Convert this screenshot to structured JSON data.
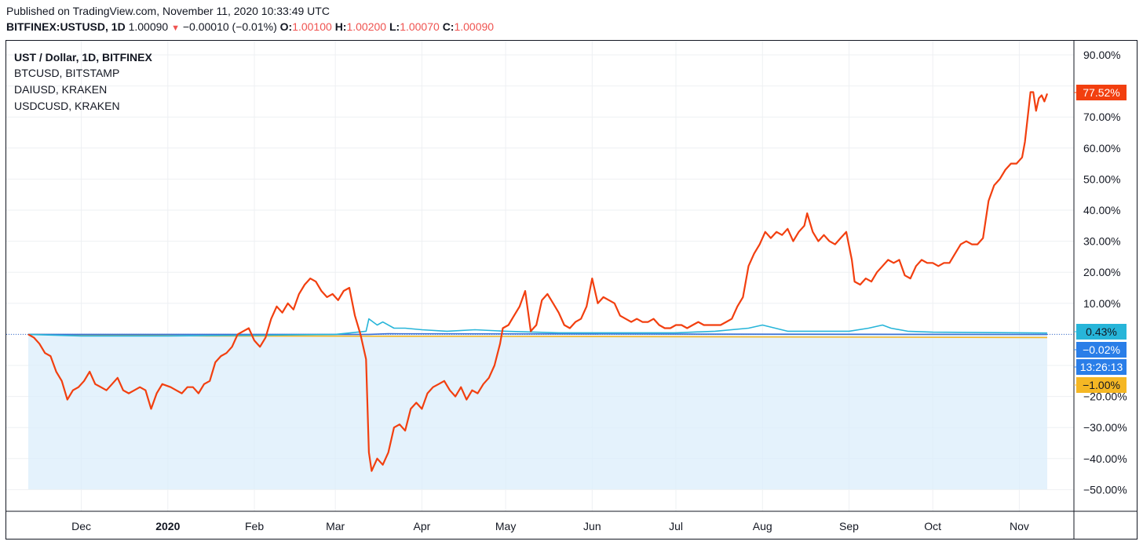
{
  "header": {
    "published": "Published on TradingView.com, November 11, 2020 10:33:49 UTC",
    "symbol": "BITFINEX:USTUSD, 1D",
    "last": "1.00090",
    "change": "−0.00010 (−0.01%)",
    "o_label": "O:",
    "o_value": "1.00100",
    "h_label": "H:",
    "h_value": "1.00200",
    "l_label": "L:",
    "l_value": "1.00070",
    "c_label": "C:",
    "c_value": "1.00090"
  },
  "legend": [
    "UST / Dollar, 1D, BITFINEX",
    "BTCUSD, BITSTAMP",
    "DAIUSD, KRAKEN",
    "USDCUSD, KRAKEN"
  ],
  "colors": {
    "btc": "#f23f0f",
    "dai": "#27b5d9",
    "usdc": "#f5b724",
    "ust": "#3b6fd4",
    "fill": "#dbeefb",
    "grid": "#eef0f3"
  },
  "chart_data": {
    "type": "line",
    "y_scale": "percent",
    "ylim": [
      -57,
      93
    ],
    "yticks": [
      -50,
      -40,
      -30,
      -20,
      -10,
      0,
      10,
      20,
      30,
      40,
      50,
      60,
      70,
      80,
      90
    ],
    "ytick_labels": [
      "−50.00%",
      "−40.00%",
      "−30.00%",
      "−20.00%",
      "",
      "",
      "10.00%",
      "20.00%",
      "30.00%",
      "40.00%",
      "50.00%",
      "60.00%",
      "70.00%",
      "",
      "90.00%"
    ],
    "x_domain": [
      "2019-11-12",
      "2020-11-11"
    ],
    "x_ticks": [
      {
        "date": "2019-12-01",
        "label": "Dec"
      },
      {
        "date": "2020-01-01",
        "label": "2020"
      },
      {
        "date": "2020-02-01",
        "label": "Feb"
      },
      {
        "date": "2020-03-01",
        "label": "Mar"
      },
      {
        "date": "2020-04-01",
        "label": "Apr"
      },
      {
        "date": "2020-05-01",
        "label": "May"
      },
      {
        "date": "2020-06-01",
        "label": "Jun"
      },
      {
        "date": "2020-07-01",
        "label": "Jul"
      },
      {
        "date": "2020-08-01",
        "label": "Aug"
      },
      {
        "date": "2020-09-01",
        "label": "Sep"
      },
      {
        "date": "2020-10-01",
        "label": "Oct"
      },
      {
        "date": "2020-11-01",
        "label": "Nov"
      }
    ],
    "series": [
      {
        "name": "BTCUSD, BITSTAMP",
        "color": "#f23f0f",
        "last_label": "77.52%",
        "points": [
          [
            "2019-11-12",
            0
          ],
          [
            "2019-11-14",
            -1
          ],
          [
            "2019-11-16",
            -3
          ],
          [
            "2019-11-18",
            -6
          ],
          [
            "2019-11-20",
            -7
          ],
          [
            "2019-11-22",
            -12
          ],
          [
            "2019-11-24",
            -15
          ],
          [
            "2019-11-26",
            -21
          ],
          [
            "2019-11-28",
            -18
          ],
          [
            "2019-11-30",
            -17
          ],
          [
            "2019-12-02",
            -15
          ],
          [
            "2019-12-04",
            -12
          ],
          [
            "2019-12-06",
            -16
          ],
          [
            "2019-12-08",
            -17
          ],
          [
            "2019-12-10",
            -18
          ],
          [
            "2019-12-12",
            -16
          ],
          [
            "2019-12-14",
            -14
          ],
          [
            "2019-12-16",
            -18
          ],
          [
            "2019-12-18",
            -19
          ],
          [
            "2019-12-20",
            -18
          ],
          [
            "2019-12-22",
            -17
          ],
          [
            "2019-12-24",
            -18
          ],
          [
            "2019-12-26",
            -24
          ],
          [
            "2019-12-28",
            -19
          ],
          [
            "2019-12-30",
            -16
          ],
          [
            "2020-01-02",
            -17
          ],
          [
            "2020-01-04",
            -18
          ],
          [
            "2020-01-06",
            -19
          ],
          [
            "2020-01-08",
            -17
          ],
          [
            "2020-01-10",
            -17
          ],
          [
            "2020-01-12",
            -19
          ],
          [
            "2020-01-14",
            -16
          ],
          [
            "2020-01-16",
            -15
          ],
          [
            "2020-01-18",
            -9
          ],
          [
            "2020-01-20",
            -7
          ],
          [
            "2020-01-22",
            -6
          ],
          [
            "2020-01-24",
            -4
          ],
          [
            "2020-01-26",
            0
          ],
          [
            "2020-01-28",
            1
          ],
          [
            "2020-01-30",
            2
          ],
          [
            "2020-02-01",
            -2
          ],
          [
            "2020-02-03",
            -4
          ],
          [
            "2020-02-05",
            -1
          ],
          [
            "2020-02-07",
            5
          ],
          [
            "2020-02-09",
            9
          ],
          [
            "2020-02-11",
            7
          ],
          [
            "2020-02-13",
            10
          ],
          [
            "2020-02-15",
            8
          ],
          [
            "2020-02-17",
            13
          ],
          [
            "2020-02-19",
            16
          ],
          [
            "2020-02-21",
            18
          ],
          [
            "2020-02-23",
            17
          ],
          [
            "2020-02-25",
            14
          ],
          [
            "2020-02-27",
            12
          ],
          [
            "2020-02-29",
            13
          ],
          [
            "2020-03-02",
            11
          ],
          [
            "2020-03-04",
            14
          ],
          [
            "2020-03-06",
            15
          ],
          [
            "2020-03-08",
            6
          ],
          [
            "2020-03-10",
            0
          ],
          [
            "2020-03-12",
            -8
          ],
          [
            "2020-03-13",
            -38
          ],
          [
            "2020-03-14",
            -44
          ],
          [
            "2020-03-16",
            -40
          ],
          [
            "2020-03-18",
            -42
          ],
          [
            "2020-03-20",
            -38
          ],
          [
            "2020-03-22",
            -30
          ],
          [
            "2020-03-24",
            -29
          ],
          [
            "2020-03-26",
            -31
          ],
          [
            "2020-03-28",
            -24
          ],
          [
            "2020-03-30",
            -22
          ],
          [
            "2020-04-01",
            -24
          ],
          [
            "2020-04-03",
            -19
          ],
          [
            "2020-04-05",
            -17
          ],
          [
            "2020-04-07",
            -16
          ],
          [
            "2020-04-09",
            -15
          ],
          [
            "2020-04-11",
            -18
          ],
          [
            "2020-04-13",
            -20
          ],
          [
            "2020-04-15",
            -17
          ],
          [
            "2020-04-17",
            -21
          ],
          [
            "2020-04-19",
            -18
          ],
          [
            "2020-04-21",
            -19
          ],
          [
            "2020-04-23",
            -16
          ],
          [
            "2020-04-25",
            -14
          ],
          [
            "2020-04-27",
            -10
          ],
          [
            "2020-04-29",
            -3
          ],
          [
            "2020-04-30",
            2
          ],
          [
            "2020-05-02",
            3
          ],
          [
            "2020-05-04",
            6
          ],
          [
            "2020-05-06",
            9
          ],
          [
            "2020-05-08",
            14
          ],
          [
            "2020-05-10",
            1
          ],
          [
            "2020-05-12",
            3
          ],
          [
            "2020-05-14",
            11
          ],
          [
            "2020-05-16",
            13
          ],
          [
            "2020-05-18",
            10
          ],
          [
            "2020-05-20",
            7
          ],
          [
            "2020-05-22",
            3
          ],
          [
            "2020-05-24",
            2
          ],
          [
            "2020-05-26",
            4
          ],
          [
            "2020-05-28",
            5
          ],
          [
            "2020-05-30",
            9
          ],
          [
            "2020-06-01",
            18
          ],
          [
            "2020-06-03",
            10
          ],
          [
            "2020-06-05",
            12
          ],
          [
            "2020-06-07",
            11
          ],
          [
            "2020-06-09",
            10
          ],
          [
            "2020-06-11",
            6
          ],
          [
            "2020-06-13",
            5
          ],
          [
            "2020-06-15",
            4
          ],
          [
            "2020-06-17",
            5
          ],
          [
            "2020-06-19",
            4
          ],
          [
            "2020-06-21",
            4
          ],
          [
            "2020-06-23",
            5
          ],
          [
            "2020-06-25",
            3
          ],
          [
            "2020-06-27",
            2
          ],
          [
            "2020-06-29",
            2
          ],
          [
            "2020-07-01",
            3
          ],
          [
            "2020-07-03",
            3
          ],
          [
            "2020-07-05",
            2
          ],
          [
            "2020-07-07",
            3
          ],
          [
            "2020-07-09",
            4
          ],
          [
            "2020-07-11",
            3
          ],
          [
            "2020-07-13",
            3
          ],
          [
            "2020-07-15",
            3
          ],
          [
            "2020-07-17",
            3
          ],
          [
            "2020-07-19",
            4
          ],
          [
            "2020-07-21",
            5
          ],
          [
            "2020-07-23",
            9
          ],
          [
            "2020-07-25",
            12
          ],
          [
            "2020-07-27",
            22
          ],
          [
            "2020-07-29",
            26
          ],
          [
            "2020-07-31",
            29
          ],
          [
            "2020-08-02",
            33
          ],
          [
            "2020-08-04",
            31
          ],
          [
            "2020-08-06",
            33
          ],
          [
            "2020-08-08",
            32
          ],
          [
            "2020-08-10",
            34
          ],
          [
            "2020-08-12",
            30
          ],
          [
            "2020-08-14",
            33
          ],
          [
            "2020-08-16",
            35
          ],
          [
            "2020-08-17",
            39
          ],
          [
            "2020-08-19",
            33
          ],
          [
            "2020-08-21",
            30
          ],
          [
            "2020-08-23",
            32
          ],
          [
            "2020-08-25",
            30
          ],
          [
            "2020-08-27",
            29
          ],
          [
            "2020-08-29",
            31
          ],
          [
            "2020-08-31",
            33
          ],
          [
            "2020-09-02",
            24
          ],
          [
            "2020-09-03",
            17
          ],
          [
            "2020-09-05",
            16
          ],
          [
            "2020-09-07",
            18
          ],
          [
            "2020-09-09",
            17
          ],
          [
            "2020-09-11",
            20
          ],
          [
            "2020-09-13",
            22
          ],
          [
            "2020-09-15",
            24
          ],
          [
            "2020-09-17",
            23
          ],
          [
            "2020-09-19",
            24
          ],
          [
            "2020-09-21",
            19
          ],
          [
            "2020-09-23",
            18
          ],
          [
            "2020-09-25",
            22
          ],
          [
            "2020-09-27",
            24
          ],
          [
            "2020-09-29",
            23
          ],
          [
            "2020-10-01",
            23
          ],
          [
            "2020-10-03",
            22
          ],
          [
            "2020-10-05",
            23
          ],
          [
            "2020-10-07",
            23
          ],
          [
            "2020-10-09",
            26
          ],
          [
            "2020-10-11",
            29
          ],
          [
            "2020-10-13",
            30
          ],
          [
            "2020-10-15",
            29
          ],
          [
            "2020-10-17",
            29
          ],
          [
            "2020-10-19",
            31
          ],
          [
            "2020-10-21",
            43
          ],
          [
            "2020-10-23",
            48
          ],
          [
            "2020-10-25",
            50
          ],
          [
            "2020-10-27",
            53
          ],
          [
            "2020-10-29",
            55
          ],
          [
            "2020-10-31",
            55
          ],
          [
            "2020-11-02",
            57
          ],
          [
            "2020-11-03",
            62
          ],
          [
            "2020-11-05",
            78
          ],
          [
            "2020-11-06",
            78
          ],
          [
            "2020-11-07",
            72
          ],
          [
            "2020-11-08",
            76
          ],
          [
            "2020-11-09",
            77
          ],
          [
            "2020-11-10",
            75
          ],
          [
            "2020-11-11",
            77.52
          ]
        ]
      },
      {
        "name": "DAIUSD, KRAKEN",
        "color": "#27b5d9",
        "last_label": "0.43%",
        "points": [
          [
            "2019-11-12",
            0
          ],
          [
            "2019-12-01",
            -0.5
          ],
          [
            "2020-01-01",
            -0.5
          ],
          [
            "2020-02-01",
            -0.3
          ],
          [
            "2020-03-01",
            0
          ],
          [
            "2020-03-12",
            1
          ],
          [
            "2020-03-13",
            5
          ],
          [
            "2020-03-16",
            3
          ],
          [
            "2020-03-18",
            4
          ],
          [
            "2020-03-22",
            2
          ],
          [
            "2020-03-26",
            2
          ],
          [
            "2020-04-01",
            1.5
          ],
          [
            "2020-04-10",
            1
          ],
          [
            "2020-04-20",
            1.5
          ],
          [
            "2020-05-01",
            1
          ],
          [
            "2020-05-20",
            0.5
          ],
          [
            "2020-06-15",
            0.5
          ],
          [
            "2020-07-01",
            0.5
          ],
          [
            "2020-07-15",
            1
          ],
          [
            "2020-07-27",
            2
          ],
          [
            "2020-08-01",
            3
          ],
          [
            "2020-08-10",
            1
          ],
          [
            "2020-09-01",
            1
          ],
          [
            "2020-09-08",
            2
          ],
          [
            "2020-09-13",
            3
          ],
          [
            "2020-09-16",
            2
          ],
          [
            "2020-09-22",
            1
          ],
          [
            "2020-10-01",
            0.7
          ],
          [
            "2020-11-11",
            0.43
          ]
        ]
      },
      {
        "name": "USDCUSD, KRAKEN",
        "color": "#f5b724",
        "last_label": "−1.00%",
        "points": [
          [
            "2019-11-12",
            0
          ],
          [
            "2020-01-15",
            -0.5
          ],
          [
            "2020-06-01",
            -0.7
          ],
          [
            "2020-11-11",
            -1.0
          ]
        ]
      },
      {
        "name": "UST / Dollar, 1D, BITFINEX",
        "color": "#3b6fd4",
        "last_label": "−0.02%",
        "countdown": "13:26:13",
        "points": [
          [
            "2019-11-12",
            0
          ],
          [
            "2020-03-13",
            0
          ],
          [
            "2020-03-20",
            0.2
          ],
          [
            "2020-11-11",
            -0.02
          ]
        ]
      }
    ]
  }
}
